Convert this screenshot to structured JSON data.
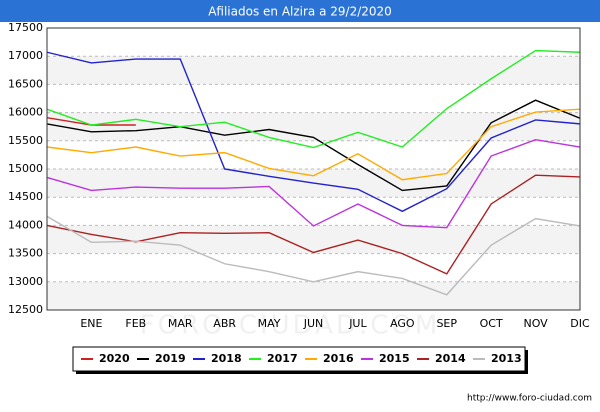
{
  "chart_data": {
    "type": "line",
    "title": "Afiliados en Alzira a 29/2/2020",
    "watermark": "FORO-CIUDAD.COM",
    "source": "http://www.foro-ciudad.com",
    "categories": [
      null,
      "ENE",
      "FEB",
      "MAR",
      "ABR",
      "MAY",
      "JUN",
      "JUL",
      "AGO",
      "SEP",
      "OCT",
      "NOV",
      "DIC"
    ],
    "ylim": [
      12500,
      17500
    ],
    "yticks": [
      12500,
      13000,
      13500,
      14000,
      14500,
      15000,
      15500,
      16000,
      16500,
      17000,
      17500
    ],
    "grid": true,
    "legend": "bottom",
    "series": [
      {
        "name": "2020",
        "color": "#cc2222",
        "values": [
          15910,
          15780,
          15780,
          null,
          null,
          null,
          null,
          null,
          null,
          null,
          null,
          null,
          null
        ]
      },
      {
        "name": "2019",
        "color": "#000000",
        "values": [
          15800,
          15660,
          15680,
          15750,
          15600,
          15700,
          15560,
          15080,
          14620,
          14700,
          15820,
          16220,
          15900
        ]
      },
      {
        "name": "2018",
        "color": "#2222cc",
        "values": [
          17070,
          16880,
          16950,
          16950,
          15000,
          14870,
          14750,
          14640,
          14250,
          14650,
          15550,
          15870,
          15800
        ]
      },
      {
        "name": "2017",
        "color": "#22ee22",
        "values": [
          16060,
          15780,
          15880,
          15750,
          15830,
          15560,
          15380,
          15650,
          15390,
          16070,
          16600,
          17100,
          17070
        ]
      },
      {
        "name": "2016",
        "color": "#ffaa00",
        "values": [
          15390,
          15290,
          15390,
          15230,
          15290,
          15010,
          14880,
          15270,
          14810,
          14920,
          15750,
          16010,
          16060
        ]
      },
      {
        "name": "2015",
        "color": "#bb33dd",
        "values": [
          14850,
          14620,
          14680,
          14660,
          14660,
          14690,
          13990,
          14380,
          14000,
          13960,
          15230,
          15520,
          15390
        ]
      },
      {
        "name": "2014",
        "color": "#aa2222",
        "values": [
          14000,
          13840,
          13710,
          13870,
          13860,
          13870,
          13520,
          13740,
          13500,
          13140,
          14380,
          14890,
          14860
        ]
      },
      {
        "name": "2013",
        "color": "#bbbbbb",
        "values": [
          14160,
          13700,
          13720,
          13650,
          13320,
          13180,
          13000,
          13180,
          13060,
          12770,
          13650,
          14120,
          13990
        ]
      }
    ]
  }
}
